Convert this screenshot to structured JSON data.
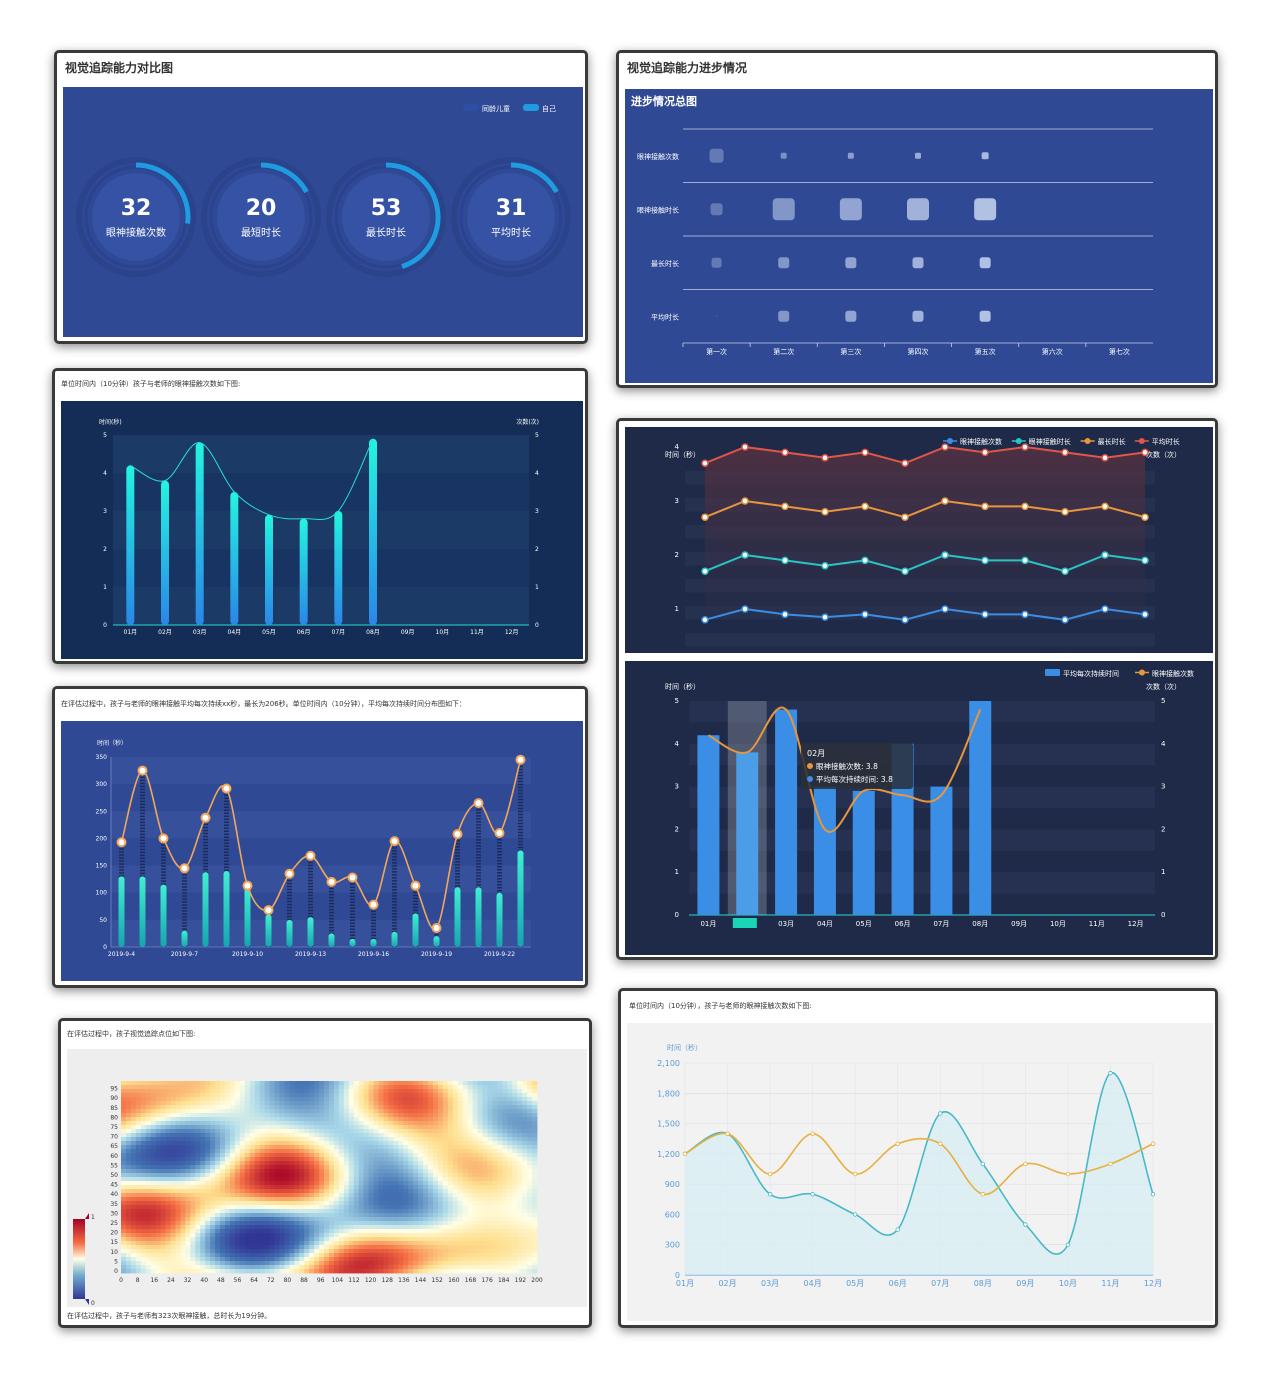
{
  "card1": {
    "title": "视觉追踪能力对比图",
    "legend": [
      {
        "label": "同龄儿童",
        "color": "#2d4fa6"
      },
      {
        "label": "自己",
        "color": "#1f9be0"
      }
    ],
    "gauges": [
      {
        "value": "32",
        "label": "眼神接触次数",
        "fraction": 0.27
      },
      {
        "value": "20",
        "label": "最短时长",
        "fraction": 0.17
      },
      {
        "value": "53",
        "label": "最长时长",
        "fraction": 0.45
      },
      {
        "value": "31",
        "label": "平均时长",
        "fraction": 0.17
      }
    ]
  },
  "card2": {
    "title": "视觉追踪能力进步情况",
    "panel_title": "进步情况总图",
    "chart_data": {
      "type": "scatter",
      "rows": [
        "眼神接触次数",
        "眼神接触时长",
        "最长时长",
        "平均时长"
      ],
      "columns": [
        "第一次",
        "第二次",
        "第三次",
        "第四次",
        "第五次",
        "第六次",
        "第七次"
      ],
      "sizes": [
        [
          14,
          6,
          6,
          6,
          7,
          0,
          0
        ],
        [
          12,
          22,
          22,
          22,
          22,
          0,
          0
        ],
        [
          10,
          11,
          11,
          11,
          11,
          0,
          0
        ],
        [
          1,
          11,
          11,
          11,
          11,
          0,
          0
        ]
      ],
      "opacity": [
        [
          0.35,
          0.5,
          0.6,
          0.7,
          0.8,
          0,
          0
        ],
        [
          0.35,
          0.55,
          0.65,
          0.75,
          0.85,
          0,
          0
        ],
        [
          0.35,
          0.55,
          0.65,
          0.75,
          0.85,
          0,
          0
        ],
        [
          0.35,
          0.55,
          0.65,
          0.75,
          0.85,
          0,
          0
        ]
      ]
    }
  },
  "card3": {
    "caption": "单位时间内（10分钟）孩子与老师的眼神接触次数如下图:",
    "chart_data": {
      "type": "bar",
      "ylabel_left": "时间(秒)",
      "ylabel_right": "次数(次)",
      "categories": [
        "01月",
        "02月",
        "03月",
        "04月",
        "05月",
        "06月",
        "07月",
        "08月",
        "09月",
        "10月",
        "11月",
        "12月"
      ],
      "values": [
        4.2,
        3.8,
        4.8,
        3.5,
        2.9,
        2.8,
        3.0,
        4.9,
        null,
        null,
        null,
        null
      ],
      "ylim": [
        0,
        5
      ],
      "yticks": [
        "0",
        "1",
        "2",
        "3",
        "4",
        "5"
      ]
    }
  },
  "card4": {
    "caption": "在评估过程中，孩子与老师的眼神接触平均每次持续xx秒，最长为206秒。单位时间内（10分钟），平均每次持续时间分布图如下：",
    "chart_data": {
      "type": "bar",
      "ylabel": "时间（秒）",
      "categories": [
        "2019-9-4",
        "",
        "",
        "2019-9-7",
        "",
        "",
        "2019-9-10",
        "",
        "",
        "2019-9-13",
        "",
        "",
        "2019-9-16",
        "",
        "",
        "2019-9-19",
        "",
        "",
        "2019-9-22",
        ""
      ],
      "bars": [
        130,
        130,
        115,
        30,
        138,
        140,
        110,
        60,
        50,
        55,
        25,
        15,
        15,
        28,
        62,
        20,
        110,
        110,
        100,
        178
      ],
      "line": [
        193,
        325,
        200,
        145,
        238,
        292,
        113,
        68,
        135,
        168,
        120,
        128,
        78,
        195,
        113,
        35,
        208,
        265,
        210,
        345
      ],
      "ylim": [
        0,
        350
      ],
      "yticks": [
        "0",
        "50",
        "100",
        "150",
        "200",
        "250",
        "300",
        "350"
      ]
    }
  },
  "card5": {
    "caption_top": "在评估过程中，孩子视觉追踪点位如下图:",
    "caption_bottom": "在评估过程中，孩子与老师有323次眼神接触，总时长为19分钟。",
    "chart_data": {
      "type": "heatmap",
      "yticks": [
        "0",
        "5",
        "10",
        "15",
        "20",
        "25",
        "30",
        "35",
        "40",
        "45",
        "50",
        "55",
        "60",
        "65",
        "70",
        "75",
        "80",
        "85",
        "90",
        "95"
      ],
      "xticks": [
        "0",
        "8",
        "16",
        "24",
        "32",
        "40",
        "48",
        "56",
        "64",
        "72",
        "80",
        "88",
        "96",
        "104",
        "112",
        "120",
        "128",
        "136",
        "144",
        "152",
        "160",
        "168",
        "176",
        "184",
        "192",
        "200"
      ],
      "scale": [
        "1",
        "0"
      ]
    }
  },
  "card6": {
    "top": {
      "chart_data": {
        "type": "line",
        "ylabel_left": "时间（秒）",
        "ylabel_right": "次数（次）",
        "legend": [
          {
            "name": "眼神接触次数",
            "color": "#3a8ee6"
          },
          {
            "name": "眼神接触时长",
            "color": "#2ac4c7"
          },
          {
            "name": "最长时长",
            "color": "#e8963c"
          },
          {
            "name": "平均时长",
            "color": "#e0574a"
          }
        ],
        "series": [
          {
            "name": "眼神接触次数",
            "values": [
              0.8,
              1.0,
              0.9,
              0.85,
              0.9,
              0.8,
              1.0,
              0.9,
              0.9,
              0.8,
              1.0,
              0.9
            ]
          },
          {
            "name": "眼神接触时长",
            "values": [
              1.7,
              2.0,
              1.9,
              1.8,
              1.9,
              1.7,
              2.0,
              1.9,
              1.9,
              1.7,
              2.0,
              1.9
            ]
          },
          {
            "name": "最长时长",
            "values": [
              2.7,
              3.0,
              2.9,
              2.8,
              2.9,
              2.7,
              3.0,
              2.9,
              2.9,
              2.8,
              2.9,
              2.7
            ]
          },
          {
            "name": "平均时长",
            "values": [
              3.7,
              4.0,
              3.9,
              3.8,
              3.9,
              3.7,
              4.0,
              3.9,
              4.0,
              3.9,
              3.8,
              3.9
            ]
          }
        ],
        "yticks": [
          "1",
          "2",
          "3",
          "4"
        ]
      }
    },
    "bottom": {
      "chart_data": {
        "type": "bar",
        "ylabel_left": "时间（秒）",
        "ylabel_right": "次数（次）",
        "legend": [
          {
            "name": "平均每次持续时间",
            "color": "#3a8ee6"
          },
          {
            "name": "眼神接触次数",
            "color": "#e8963c"
          }
        ],
        "categories": [
          "01月",
          "02月",
          "03月",
          "04月",
          "05月",
          "06月",
          "07月",
          "08月",
          "09月",
          "10月",
          "11月",
          "12月"
        ],
        "bars": [
          4.2,
          3.8,
          4.8,
          3.0,
          2.9,
          4.0,
          3.0,
          5.0,
          null,
          null,
          null,
          null
        ],
        "line": [
          4.2,
          3.8,
          4.8,
          2.0,
          2.9,
          2.8,
          2.8,
          4.8
        ],
        "yticks": [
          "0",
          "1",
          "2",
          "3",
          "4",
          "5"
        ],
        "tooltip": {
          "title": "02月",
          "line1": "眼神接触次数: 3.8",
          "line2": "平均每次持续时间: 3.8"
        }
      }
    }
  },
  "card7": {
    "caption": "单位时间内（10分钟），孩子与老师的眼神接触次数如下图:",
    "chart_data": {
      "type": "area",
      "ylabel": "时间（秒）",
      "categories": [
        "01月",
        "02月",
        "03月",
        "04月",
        "05月",
        "06月",
        "07月",
        "08月",
        "09月",
        "10月",
        "11月",
        "12月"
      ],
      "series": [
        {
          "name": "",
          "color": "#4ab8c8",
          "values": [
            1200,
            1400,
            800,
            800,
            600,
            450,
            1600,
            1100,
            500,
            300,
            2000,
            800
          ]
        },
        {
          "name": "",
          "color": "#e8b040",
          "values": [
            1200,
            1400,
            1000,
            1400,
            1000,
            1300,
            1300,
            800,
            1100,
            1000,
            1100,
            1300
          ]
        }
      ],
      "yticks": [
        "0",
        "300",
        "600",
        "900",
        "1,200",
        "1,500",
        "1,800",
        "2,100"
      ],
      "ylim": [
        0,
        2100
      ]
    }
  }
}
